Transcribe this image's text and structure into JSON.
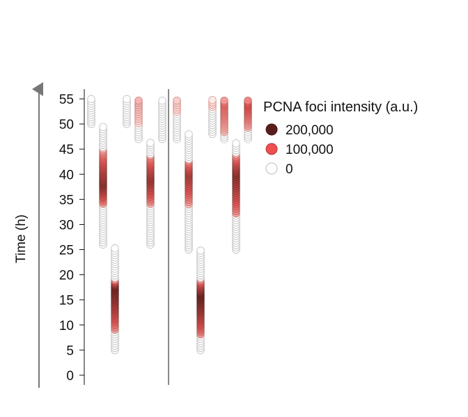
{
  "chart_data": {
    "type": "scatter",
    "subtype": "cell-lineage intensity timeline",
    "ylabel": "Time (h)",
    "yticks": [
      0,
      5,
      10,
      15,
      20,
      25,
      30,
      35,
      40,
      45,
      50,
      55
    ],
    "ylim": [
      0,
      55
    ],
    "legend": {
      "title": "PCNA foci intensity (a.u.)",
      "placement": "top-right",
      "entries": [
        {
          "label": "200,000",
          "value": 200000,
          "color": "#5a1e1a"
        },
        {
          "label": "100,000",
          "value": 100000,
          "color": "#ef4f4f"
        },
        {
          "label": "0",
          "value": 0,
          "color": "#ffffff"
        }
      ]
    },
    "intensity_colors": {
      "low": "#ffffff",
      "mid": "#ef4f4f",
      "high": "#5a1e1a"
    },
    "panels": 2,
    "tracks": [
      {
        "panel": 1,
        "column": 1,
        "start": 50,
        "end": 55,
        "segments": []
      },
      {
        "panel": 1,
        "column": 2,
        "start": 26,
        "end": 49.5,
        "segments": [
          {
            "from": 34,
            "to": 45,
            "peak": 38,
            "max": 160000
          }
        ]
      },
      {
        "panel": 1,
        "column": 3,
        "start": 5,
        "end": 25.5,
        "segments": [
          {
            "from": 9,
            "to": 19,
            "peak": 17.5,
            "max": 180000
          }
        ]
      },
      {
        "panel": 1,
        "column": 4,
        "start": 50,
        "end": 55,
        "segments": []
      },
      {
        "panel": 1,
        "column": 5,
        "start": 47,
        "end": 55,
        "segments": [
          {
            "from": 50,
            "to": 55,
            "peak": 55,
            "max": 45000
          }
        ]
      },
      {
        "panel": 1,
        "column": 6,
        "start": 26,
        "end": 46.5,
        "segments": [
          {
            "from": 34,
            "to": 44,
            "peak": 39,
            "max": 150000
          }
        ]
      },
      {
        "panel": 1,
        "column": 7,
        "start": 47,
        "end": 55,
        "segments": []
      },
      {
        "panel": 2,
        "column": 1,
        "start": 47,
        "end": 55,
        "segments": [
          {
            "from": 52,
            "to": 55,
            "peak": 55,
            "max": 30000
          }
        ]
      },
      {
        "panel": 2,
        "column": 2,
        "start": 25,
        "end": 48,
        "segments": [
          {
            "from": 34,
            "to": 43,
            "peak": 40,
            "max": 140000
          }
        ]
      },
      {
        "panel": 2,
        "column": 3,
        "start": 5,
        "end": 25,
        "segments": [
          {
            "from": 8,
            "to": 19,
            "peak": 16,
            "max": 185000
          }
        ]
      },
      {
        "panel": 2,
        "column": 4,
        "start": 48,
        "end": 55,
        "segments": [
          {
            "from": 53,
            "to": 55,
            "peak": 54,
            "max": 20000
          }
        ]
      },
      {
        "panel": 2,
        "column": 5,
        "start": 47,
        "end": 55,
        "segments": [
          {
            "from": 48,
            "to": 55,
            "peak": 54,
            "max": 90000
          }
        ]
      },
      {
        "panel": 2,
        "column": 6,
        "start": 25,
        "end": 46.5,
        "segments": [
          {
            "from": 32,
            "to": 44,
            "peak": 40,
            "max": 160000
          }
        ]
      },
      {
        "panel": 2,
        "column": 7,
        "start": 47,
        "end": 55,
        "segments": [
          {
            "from": 49,
            "to": 55,
            "peak": 54,
            "max": 110000
          }
        ]
      }
    ]
  }
}
